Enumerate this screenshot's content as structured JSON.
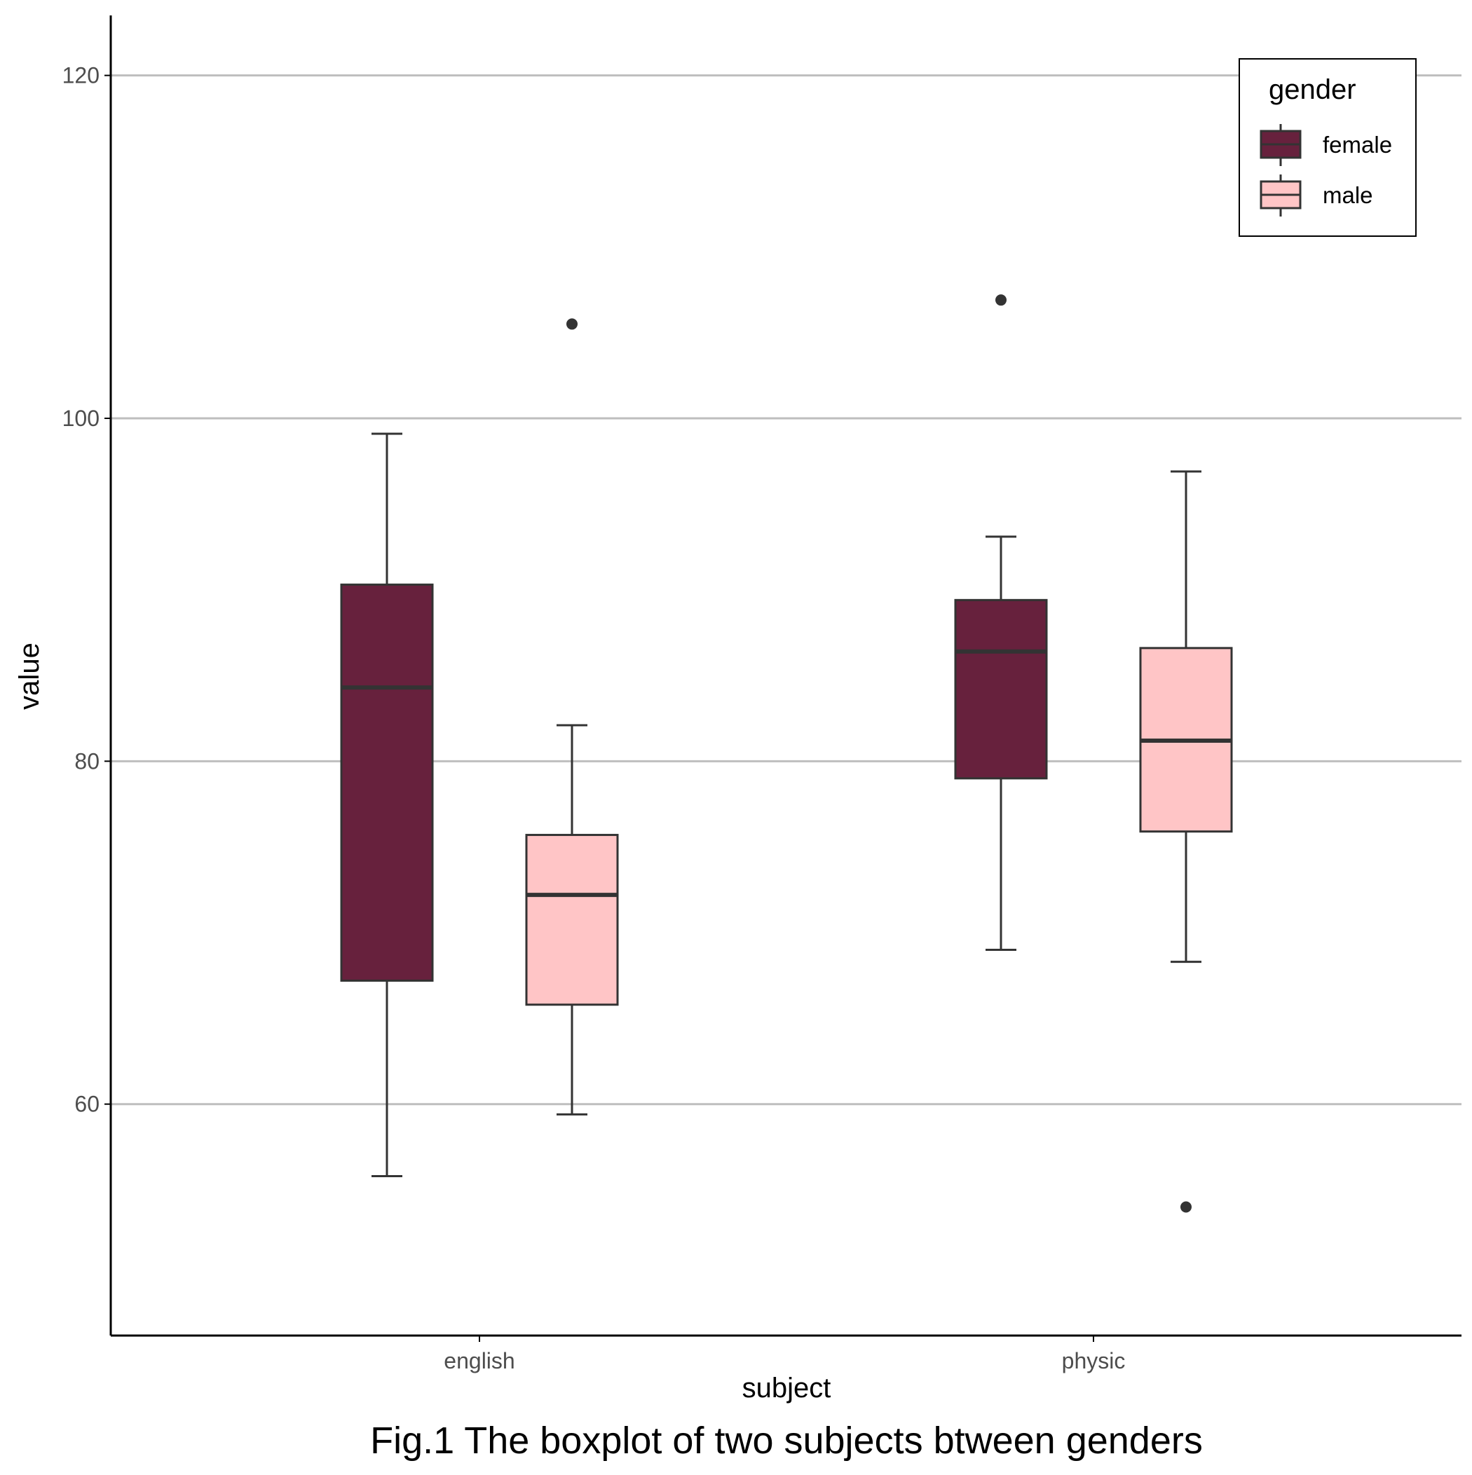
{
  "chart_data": {
    "type": "box",
    "caption": "Fig.1 The boxplot of two subjects btween genders",
    "xlabel": "subject",
    "ylabel": "value",
    "ylim": [
      46.5,
      123.5
    ],
    "yticks": [
      60,
      80,
      100,
      120
    ],
    "grid": {
      "horizontal_major": true,
      "vertical": false
    },
    "categories": [
      "english",
      "physic"
    ],
    "legend": {
      "title": "gender",
      "position": "top-right"
    },
    "series": [
      {
        "name": "female",
        "color": "#67213D",
        "boxes": [
          {
            "category": "english",
            "whisker_low": 55.8,
            "q1": 67.2,
            "median": 84.3,
            "q3": 90.3,
            "whisker_high": 99.1,
            "outliers": []
          },
          {
            "category": "physic",
            "whisker_low": 69.0,
            "q1": 79.0,
            "median": 86.4,
            "q3": 89.4,
            "whisker_high": 93.1,
            "outliers": [
              106.9
            ]
          }
        ]
      },
      {
        "name": "male",
        "color": "#FFC5C6",
        "boxes": [
          {
            "category": "english",
            "whisker_low": 59.4,
            "q1": 65.8,
            "median": 72.2,
            "q3": 75.7,
            "whisker_high": 82.1,
            "outliers": [
              105.5
            ]
          },
          {
            "category": "physic",
            "whisker_low": 68.3,
            "q1": 75.9,
            "median": 81.2,
            "q3": 86.6,
            "whisker_high": 96.9,
            "outliers": [
              54.0
            ]
          }
        ]
      }
    ],
    "colors": {
      "outline": "#333333",
      "axis": "#000000",
      "grid": "#bebebe"
    }
  }
}
